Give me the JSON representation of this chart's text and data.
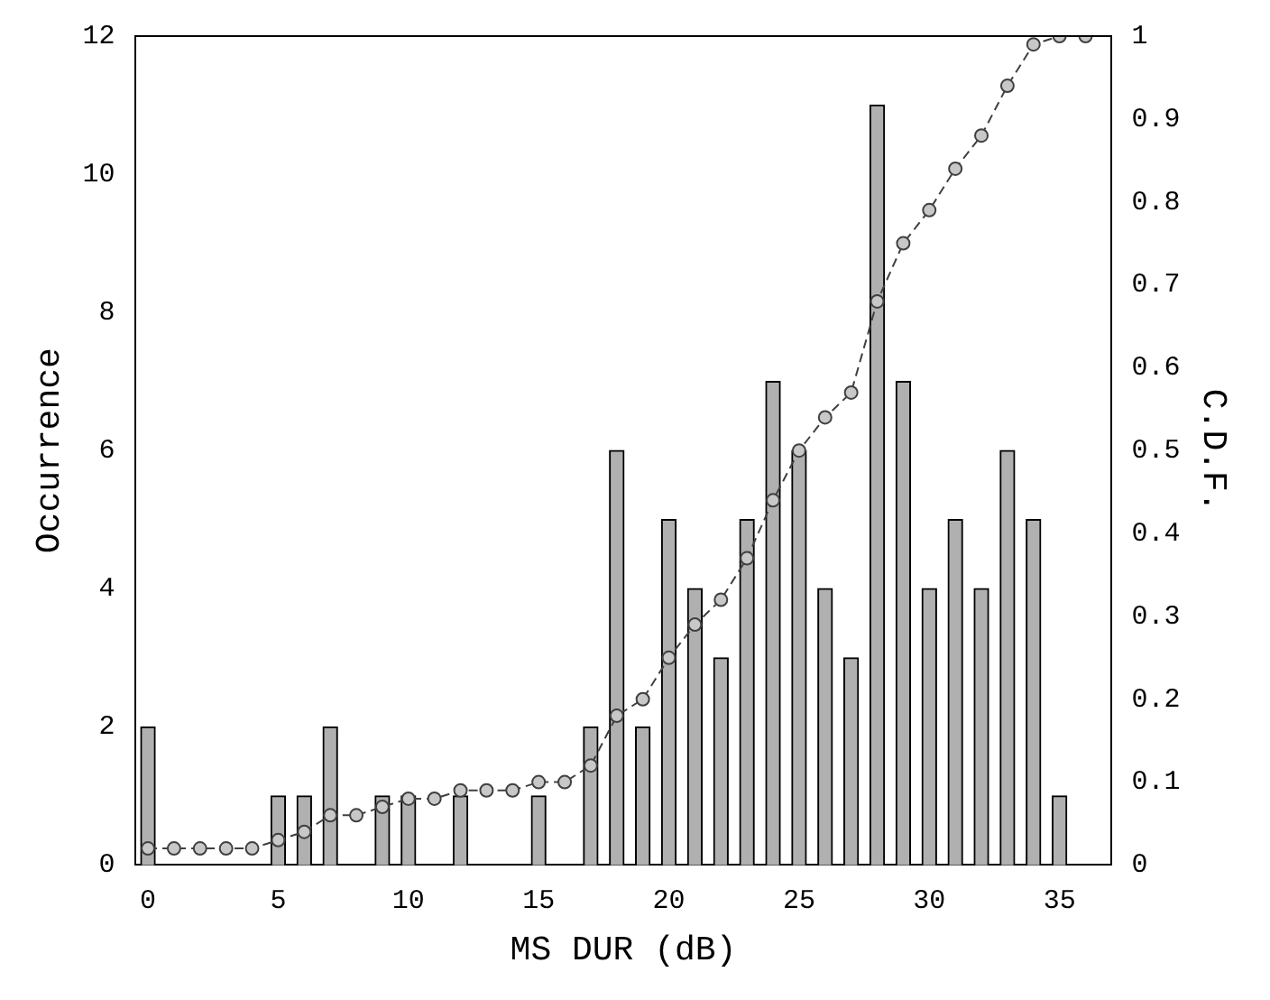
{
  "chart_data": {
    "type": "bar",
    "xlabel": "MS DUR (dB)",
    "ylabel": "Occurrence",
    "y2label": "C.D.F.",
    "xlim": [
      -0.5,
      37
    ],
    "xticks": [
      0,
      5,
      10,
      15,
      20,
      25,
      30,
      35
    ],
    "ylim": [
      0,
      12
    ],
    "yticks": [
      0,
      2,
      4,
      6,
      8,
      10,
      12
    ],
    "y2lim": [
      0,
      1
    ],
    "y2ticks": [
      0,
      0.1,
      0.2,
      0.3,
      0.4,
      0.5,
      0.6,
      0.7,
      0.8,
      0.9,
      1
    ],
    "grid": false,
    "legend": false,
    "marker": "circle",
    "line_style": "dashed",
    "series": [
      {
        "color": "#b0b0b0",
        "x": [
          0,
          5,
          6,
          7,
          9,
          10,
          12,
          15,
          17,
          18,
          19,
          20,
          21,
          22,
          23,
          24,
          25,
          26,
          27,
          28,
          29,
          30,
          31,
          32,
          33,
          34,
          35
        ],
        "values": [
          2,
          1,
          1,
          2,
          1,
          1,
          1,
          1,
          2,
          6,
          2,
          5,
          4,
          3,
          5,
          7,
          6,
          4,
          3,
          11,
          7,
          4,
          5,
          4,
          6,
          5,
          1
        ]
      },
      {
        "type": "line",
        "axis": "y2",
        "color": "#404040",
        "x": [
          0,
          1,
          2,
          3,
          4,
          5,
          6,
          7,
          8,
          9,
          10,
          11,
          12,
          13,
          14,
          15,
          16,
          17,
          18,
          19,
          20,
          21,
          22,
          23,
          24,
          25,
          26,
          27,
          28,
          29,
          30,
          31,
          32,
          33,
          34,
          35,
          36
        ],
        "values": [
          0.02,
          0.02,
          0.02,
          0.02,
          0.02,
          0.03,
          0.04,
          0.06,
          0.06,
          0.07,
          0.08,
          0.08,
          0.09,
          0.09,
          0.09,
          0.1,
          0.1,
          0.12,
          0.18,
          0.2,
          0.25,
          0.29,
          0.32,
          0.37,
          0.44,
          0.5,
          0.54,
          0.57,
          0.68,
          0.75,
          0.79,
          0.84,
          0.88,
          0.94,
          0.99,
          1,
          1
        ]
      }
    ]
  }
}
